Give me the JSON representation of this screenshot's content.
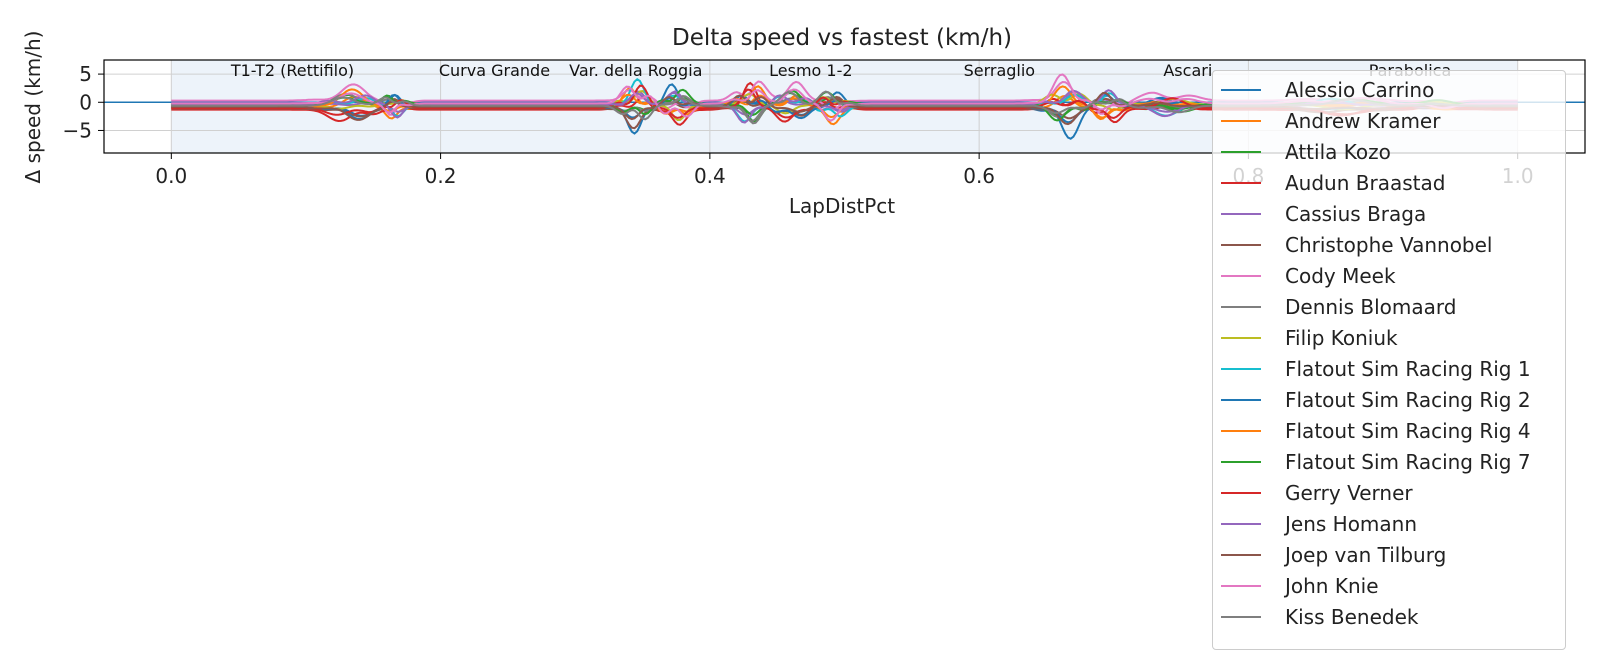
{
  "chart_data": {
    "type": "line",
    "title": "Delta speed vs fastest (km/h)",
    "xlabel": "LapDistPct",
    "ylabel": "Δ speed (km/h)",
    "xlim": [
      -0.05,
      1.05
    ],
    "ylim": [
      -9,
      7.5
    ],
    "xticks": [
      "0.0",
      "0.2",
      "0.4",
      "0.6",
      "0.8",
      "1.0"
    ],
    "yticks": [
      "5",
      "0",
      "−5"
    ],
    "grid": true,
    "legend_position": "top-right",
    "sectors": [
      {
        "label": "T1-T2 (Rettifilo)",
        "center": 0.09
      },
      {
        "label": "Curva Grande",
        "center": 0.24
      },
      {
        "label": "Var. della Roggia",
        "center": 0.345
      },
      {
        "label": "Lesmo 1-2",
        "center": 0.475
      },
      {
        "label": "Serraglio",
        "center": 0.615
      },
      {
        "label": "Ascari",
        "center": 0.755
      },
      {
        "label": "Parabolica",
        "center": 0.92
      }
    ],
    "series": [
      {
        "name": "Alessio Carrino",
        "color": "#1f77b4",
        "offset": -0.8,
        "amp": 1.6
      },
      {
        "name": "Andrew Kramer",
        "color": "#ff7f0e",
        "offset": -1.0,
        "amp": 1.2
      },
      {
        "name": "Attila Kozo",
        "color": "#2ca02c",
        "offset": -0.6,
        "amp": 1.0
      },
      {
        "name": "Audun Braastad",
        "color": "#d62728",
        "offset": -1.3,
        "amp": 1.2
      },
      {
        "name": "Cassius Braga",
        "color": "#9467bd",
        "offset": -0.7,
        "amp": 0.9
      },
      {
        "name": "Christophe Vannobel",
        "color": "#8c564b",
        "offset": -1.1,
        "amp": 1.0
      },
      {
        "name": "Cody Meek",
        "color": "#e377c2",
        "offset": 0.3,
        "amp": 1.4
      },
      {
        "name": "Dennis Blomaard",
        "color": "#7f7f7f",
        "offset": -0.5,
        "amp": 0.9
      },
      {
        "name": "Filip Koniuk",
        "color": "#bcbd22",
        "offset": -0.4,
        "amp": 1.0
      },
      {
        "name": "Flatout Sim Racing Rig 1",
        "color": "#17becf",
        "offset": -0.6,
        "amp": 1.3
      },
      {
        "name": "Flatout Sim Racing Rig 2",
        "color": "#1f77b4",
        "offset": -0.9,
        "amp": 1.1
      },
      {
        "name": "Flatout Sim Racing Rig 4",
        "color": "#ff7f0e",
        "offset": -0.7,
        "amp": 1.2
      },
      {
        "name": "Flatout Sim Racing Rig 7",
        "color": "#2ca02c",
        "offset": -0.3,
        "amp": 1.1
      },
      {
        "name": "Gerry Verner",
        "color": "#d62728",
        "offset": -1.0,
        "amp": 1.3
      },
      {
        "name": "Jens Homann",
        "color": "#9467bd",
        "offset": -0.5,
        "amp": 1.2
      },
      {
        "name": "Joep van Tilburg",
        "color": "#8c564b",
        "offset": -0.8,
        "amp": 1.0
      },
      {
        "name": "John Knie",
        "color": "#e377c2",
        "offset": -0.2,
        "amp": 1.5
      },
      {
        "name": "Kiss Benedek",
        "color": "#7f7f7f",
        "offset": -0.6,
        "amp": 1.1
      }
    ]
  }
}
